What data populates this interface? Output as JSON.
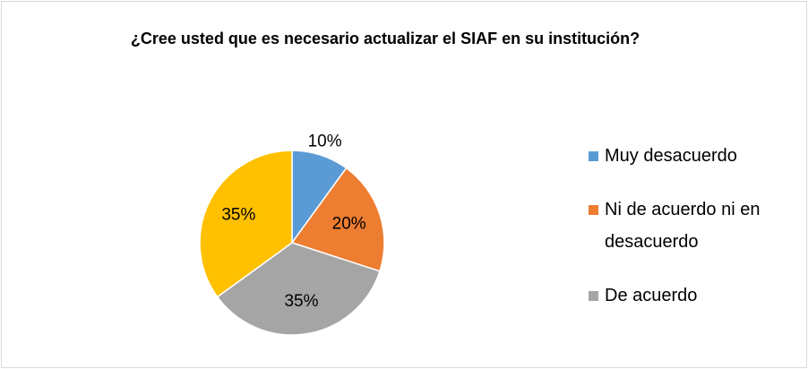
{
  "chart_data": {
    "type": "pie",
    "title": "¿Cree usted que es necesario actualizar el SIAF en su institución?",
    "categories": [
      "Muy desacuerdo",
      "Ni de acuerdo ni en desacuerdo",
      "De acuerdo",
      null
    ],
    "values": [
      10,
      20,
      35,
      35
    ],
    "value_labels": [
      "10%",
      "20%",
      "35%",
      "35%"
    ],
    "colors": [
      "#5b9bd5",
      "#ed7d31",
      "#a5a5a5",
      "#ffc000"
    ],
    "legend": "right"
  }
}
